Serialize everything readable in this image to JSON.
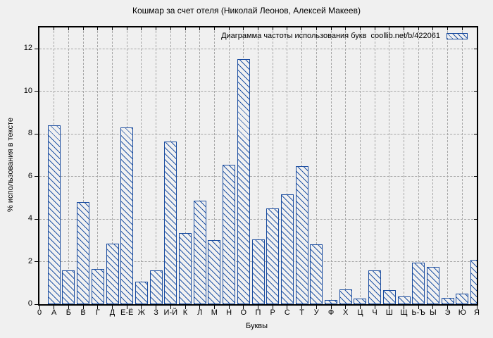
{
  "title": "Кошмар за счет отеля (Николай Леонов, Алексей Макеев)",
  "legend": {
    "label": "Диаграмма частоты использования букв  coollib.net/b/422061",
    "swatch_color": "#1a4c9f",
    "hatch": "\\\\ diagonal"
  },
  "chart_data": {
    "type": "bar",
    "title": "Диаграмма частоты использования букв  coollib.net/b/422061",
    "xlabel": "Буквы",
    "ylabel": "% использования в тексте",
    "origin_label": "0",
    "categories": [
      "А",
      "Б",
      "В",
      "Г",
      "Д",
      "Е-Ё",
      "Ж",
      "З",
      "И-Й",
      "К",
      "Л",
      "М",
      "Н",
      "О",
      "П",
      "Р",
      "С",
      "Т",
      "У",
      "Ф",
      "Х",
      "Ц",
      "Ч",
      "Ш",
      "Щ",
      "Ь-Ъ",
      "Ы",
      "Э",
      "Ю",
      "Я"
    ],
    "values": [
      8.4,
      1.6,
      4.8,
      1.65,
      2.85,
      8.3,
      1.05,
      1.6,
      7.65,
      3.35,
      4.85,
      3.0,
      6.55,
      11.5,
      3.05,
      4.5,
      5.15,
      6.5,
      2.8,
      0.2,
      0.7,
      0.25,
      1.6,
      0.65,
      0.35,
      1.95,
      1.75,
      0.3,
      0.5,
      2.1
    ],
    "ylim": [
      0,
      13
    ],
    "yticks": [
      0,
      2,
      4,
      6,
      8,
      10,
      12
    ],
    "grid": true,
    "legend_position": "top-right",
    "bar_color": "#1a4c9f",
    "background_color": "#f0f0f0"
  }
}
